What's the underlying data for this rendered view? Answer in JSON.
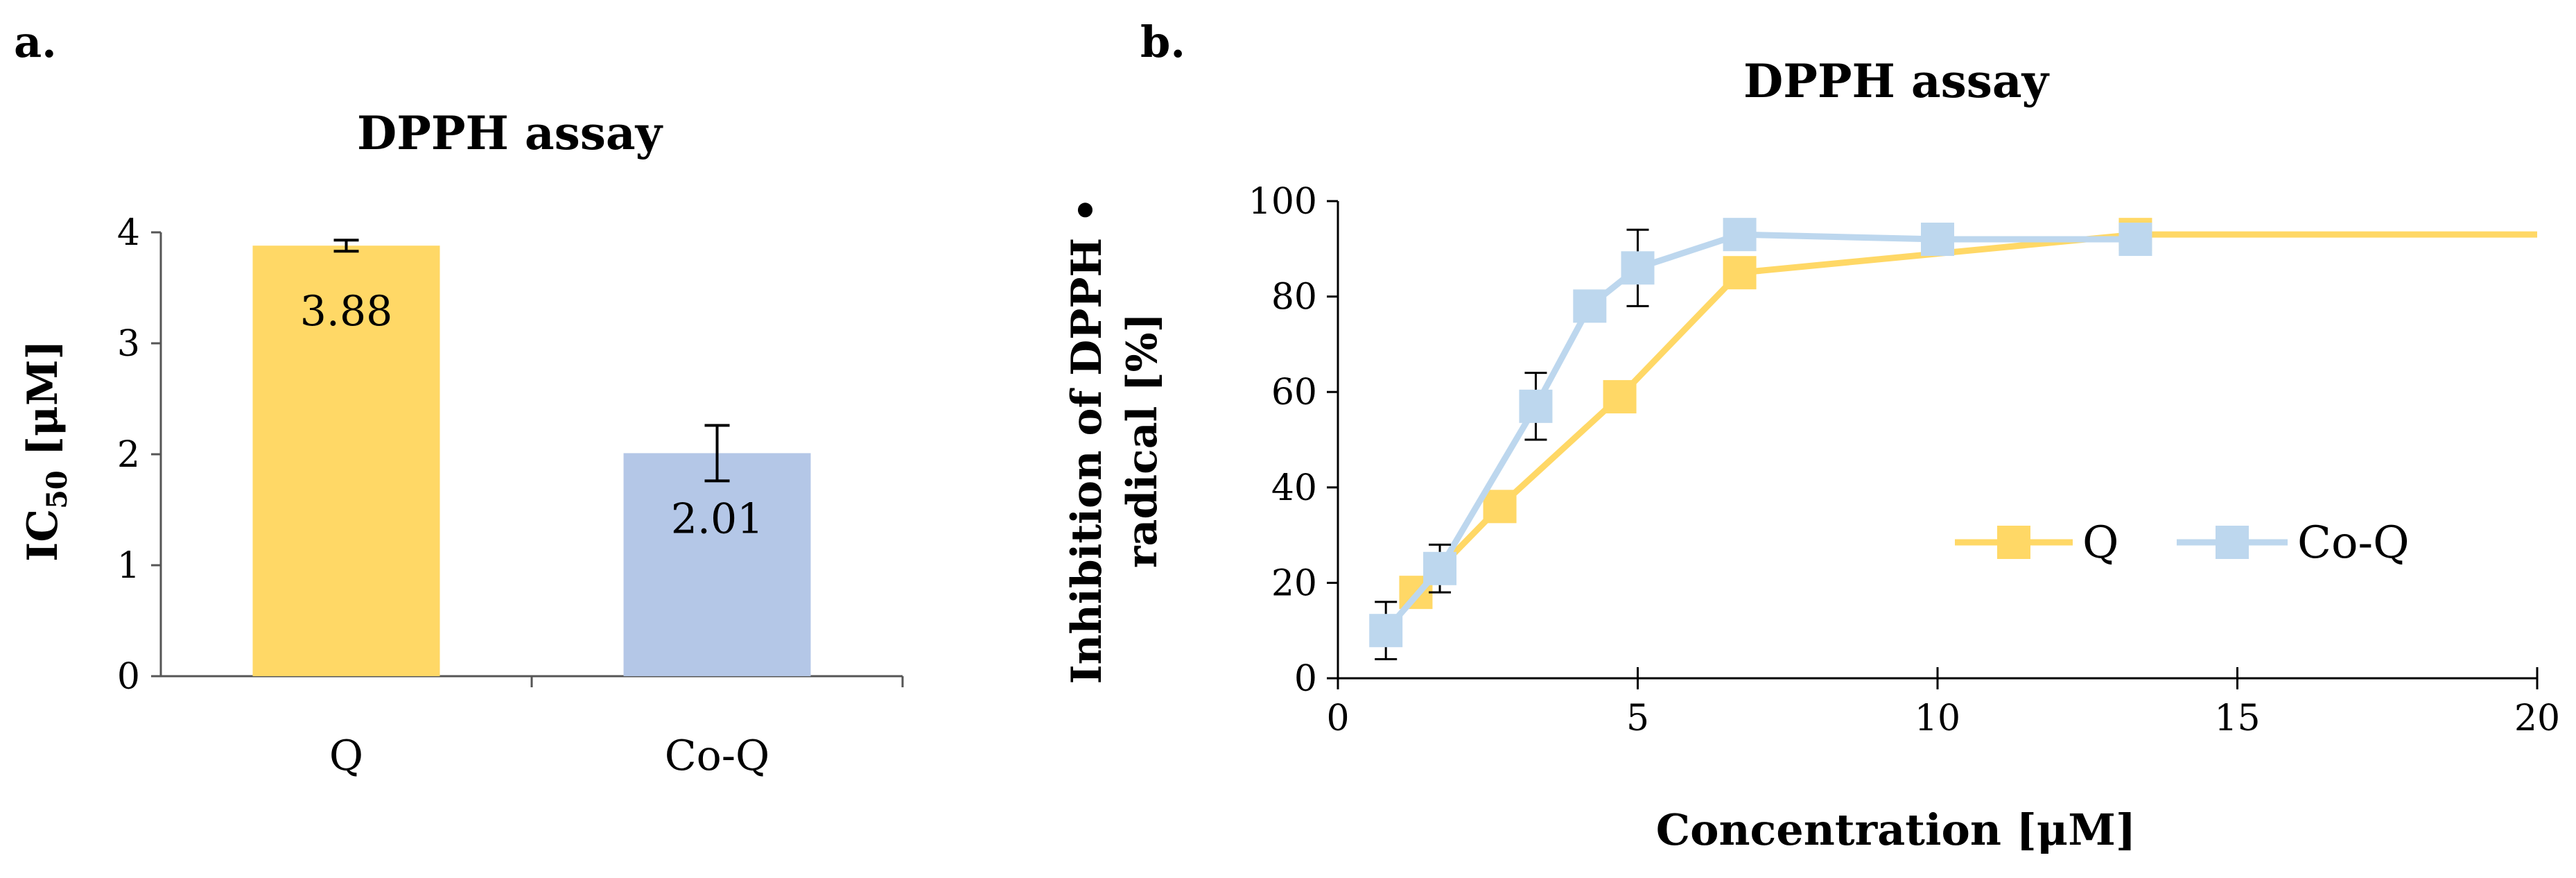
{
  "panel_a": {
    "label": "a.",
    "chart_data": {
      "type": "bar",
      "title": "DPPH assay",
      "ylabel_main": "IC",
      "ylabel_sub": "50",
      "ylabel_unit": " [μM]",
      "categories": [
        "Q",
        "Co-Q"
      ],
      "values": [
        3.88,
        2.01
      ],
      "value_labels": [
        "3.88",
        "2.01"
      ],
      "errors": [
        0.05,
        0.25
      ],
      "colors": [
        "#FFD866",
        "#B4C7E7"
      ],
      "ylim": [
        0,
        4
      ],
      "yticks": [
        0,
        1,
        2,
        3,
        4
      ]
    }
  },
  "panel_b": {
    "label": "b.",
    "chart_data": {
      "type": "line",
      "title": "DPPH assay",
      "xlabel": "Concentration [μM]",
      "ylabel_line1": "Inhibition of DPPH •",
      "ylabel_line2": "radical [%]",
      "xlim": [
        0,
        20
      ],
      "ylim": [
        0,
        100
      ],
      "xticks": [
        0,
        5,
        10,
        15,
        20
      ],
      "yticks": [
        0,
        20,
        40,
        60,
        80,
        100
      ],
      "legend_position": "center-right",
      "series": [
        {
          "name": "Q",
          "color": "#FFD866",
          "x": [
            1.3,
            2.7,
            4.7,
            6.7,
            13.3,
            20
          ],
          "y": [
            18,
            36,
            59,
            85,
            93,
            93
          ],
          "markers": [
            true,
            true,
            true,
            true,
            true,
            false
          ],
          "errors": [
            0,
            0,
            0,
            0,
            0,
            0
          ]
        },
        {
          "name": "Co-Q",
          "color": "#BDD7EE",
          "x": [
            0.8,
            1.7,
            3.3,
            4.2,
            5.0,
            6.7,
            10,
            13.3
          ],
          "y": [
            10,
            23,
            57,
            78,
            86,
            93,
            92,
            92
          ],
          "markers": [
            true,
            true,
            true,
            true,
            true,
            true,
            true,
            true
          ],
          "errors": [
            6,
            5,
            7,
            0,
            8,
            0,
            0,
            0
          ]
        }
      ]
    }
  }
}
